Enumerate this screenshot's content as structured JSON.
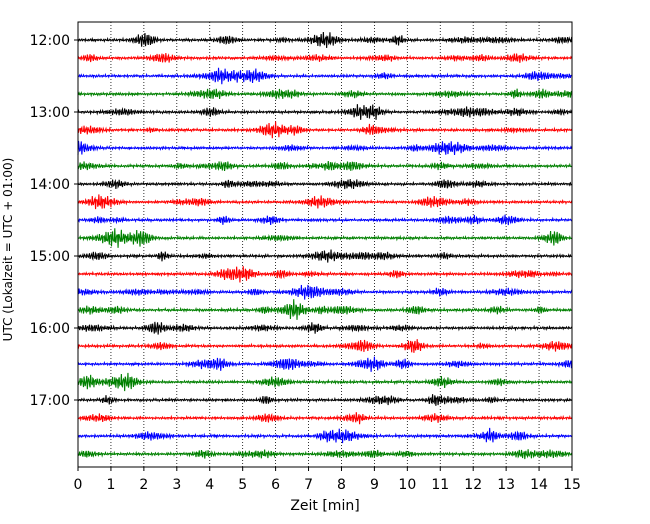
{
  "chart_data": {
    "type": "line",
    "subtype": "helicorder-seismogram",
    "title": "",
    "xlabel": "Zeit  [min]",
    "ylabel": "UTC (Lokalzeit = UTC + 01:00)",
    "xlim": [
      0,
      15
    ],
    "x_ticks": [
      "0",
      "1",
      "2",
      "3",
      "4",
      "5",
      "6",
      "7",
      "8",
      "9",
      "10",
      "11",
      "12",
      "13",
      "14",
      "15"
    ],
    "y_ticks": [
      "12:00",
      "13:00",
      "14:00",
      "15:00",
      "16:00",
      "17:00"
    ],
    "y_tick_rows": [
      0,
      4,
      8,
      12,
      16,
      20
    ],
    "rows": 24,
    "row_minutes": 15,
    "start_time": "12:00",
    "color_cycle": [
      "#000000",
      "#ff0000",
      "#0000ff",
      "#008000"
    ],
    "grid": {
      "x": "dotted vertical lines at each minute",
      "y": "none"
    },
    "legend": "none"
  }
}
